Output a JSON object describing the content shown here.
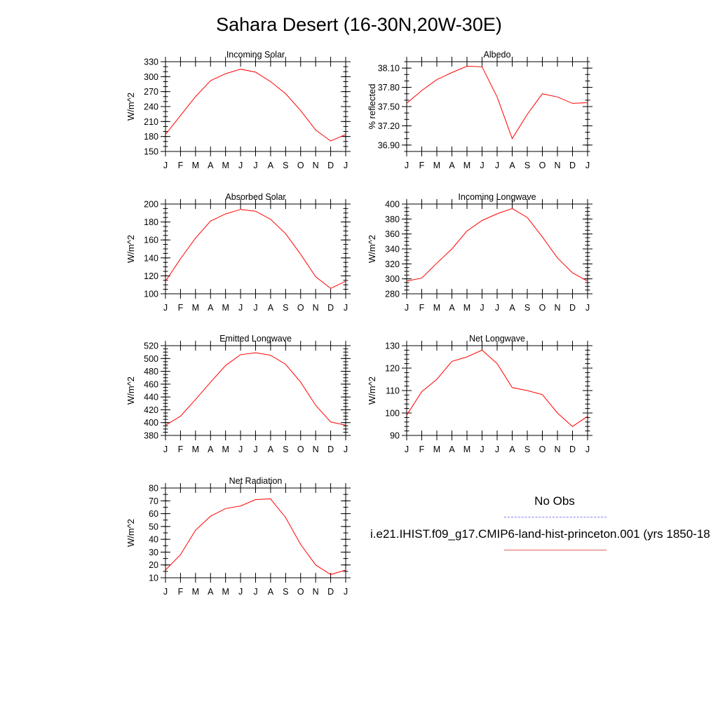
{
  "title": "Sahara Desert (16-30N,20W-30E)",
  "legend": {
    "obs_label": "No Obs",
    "model_label": "i.e21.IHIST.f09_g17.CMIP6-land-hist-princeton.001 (yrs 1850-18",
    "obs_color": "#8080ff",
    "model_color": "#ff0000"
  },
  "chart_data": [
    {
      "type": "line",
      "title": "Incoming Solar",
      "ylabel": "W/m^2",
      "x": [
        "J",
        "F",
        "M",
        "A",
        "M",
        "J",
        "J",
        "A",
        "S",
        "O",
        "N",
        "D",
        "J"
      ],
      "ylim": [
        150,
        330
      ],
      "yticks": [
        "150",
        "180",
        "210",
        "240",
        "270",
        "300",
        "330"
      ],
      "yminor_step": 10,
      "series": [
        {
          "color": "#ff0000",
          "values": [
            184,
            222,
            260,
            292,
            306,
            315,
            309,
            290,
            266,
            232,
            193,
            171,
            184
          ]
        }
      ]
    },
    {
      "type": "line",
      "title": "Albedo",
      "ylabel": "% reflected",
      "x": [
        "J",
        "F",
        "M",
        "A",
        "M",
        "J",
        "J",
        "A",
        "S",
        "O",
        "N",
        "D",
        "J"
      ],
      "ylim": [
        36.8,
        38.2
      ],
      "yticks": [
        "36.90",
        "37.20",
        "37.50",
        "37.80",
        "38.10"
      ],
      "yminor_step": 0.1,
      "series": [
        {
          "color": "#ff0000",
          "values": [
            37.55,
            37.75,
            37.92,
            38.03,
            38.13,
            38.12,
            37.65,
            37.0,
            37.38,
            37.7,
            37.65,
            37.55,
            37.56
          ]
        }
      ]
    },
    {
      "type": "line",
      "title": "Absorbed Solar",
      "ylabel": "W/m^2",
      "x": [
        "J",
        "F",
        "M",
        "A",
        "M",
        "J",
        "J",
        "A",
        "S",
        "O",
        "N",
        "D",
        "J"
      ],
      "ylim": [
        100,
        200
      ],
      "yticks": [
        "100",
        "120",
        "140",
        "160",
        "180",
        "200"
      ],
      "yminor_step": 5,
      "series": [
        {
          "color": "#ff0000",
          "values": [
            114,
            139,
            162,
            181,
            189,
            194,
            192,
            183,
            167,
            144,
            119,
            106,
            114
          ]
        }
      ]
    },
    {
      "type": "line",
      "title": "Incoming Longwave",
      "ylabel": "W/m^2",
      "x": [
        "J",
        "F",
        "M",
        "A",
        "M",
        "J",
        "J",
        "A",
        "S",
        "O",
        "N",
        "D",
        "J"
      ],
      "ylim": [
        280,
        400
      ],
      "yticks": [
        "280",
        "300",
        "320",
        "340",
        "360",
        "380",
        "400"
      ],
      "yminor_step": 5,
      "series": [
        {
          "color": "#ff0000",
          "values": [
            297,
            301,
            321,
            340,
            364,
            378,
            387,
            394,
            382,
            356,
            328,
            308,
            297
          ]
        }
      ]
    },
    {
      "type": "line",
      "title": "Emitted Longwave",
      "ylabel": "W/m^2",
      "x": [
        "J",
        "F",
        "M",
        "A",
        "M",
        "J",
        "J",
        "A",
        "S",
        "O",
        "N",
        "D",
        "J"
      ],
      "ylim": [
        380,
        520
      ],
      "yticks": [
        "380",
        "400",
        "420",
        "440",
        "460",
        "480",
        "500",
        "520"
      ],
      "yminor_step": 5,
      "series": [
        {
          "color": "#ff0000",
          "values": [
            396,
            410,
            436,
            463,
            489,
            506,
            509,
            505,
            491,
            463,
            427,
            401,
            396
          ]
        }
      ]
    },
    {
      "type": "line",
      "title": "Net Longwave",
      "ylabel": "W/m^2",
      "x": [
        "J",
        "F",
        "M",
        "A",
        "M",
        "J",
        "J",
        "A",
        "S",
        "O",
        "N",
        "D",
        "J"
      ],
      "ylim": [
        90,
        130
      ],
      "yticks": [
        "90",
        "100",
        "110",
        "120",
        "130"
      ],
      "yminor_step": 2,
      "series": [
        {
          "color": "#ff0000",
          "values": [
            99,
            109.5,
            115,
            123,
            125,
            128,
            122,
            111.3,
            110,
            108.2,
            100,
            94,
            98.5
          ]
        }
      ]
    },
    {
      "type": "line",
      "title": "Net Radiation",
      "ylabel": "W/m^2",
      "x": [
        "J",
        "F",
        "M",
        "A",
        "M",
        "J",
        "J",
        "A",
        "S",
        "O",
        "N",
        "D",
        "J"
      ],
      "ylim": [
        10,
        80
      ],
      "yticks": [
        "10",
        "20",
        "30",
        "40",
        "50",
        "60",
        "70",
        "80"
      ],
      "yminor_step": 5,
      "series": [
        {
          "color": "#ff0000",
          "values": [
            16,
            28,
            47,
            58,
            64,
            66,
            71,
            71.5,
            57,
            36,
            20,
            12.5,
            16
          ]
        }
      ]
    }
  ]
}
